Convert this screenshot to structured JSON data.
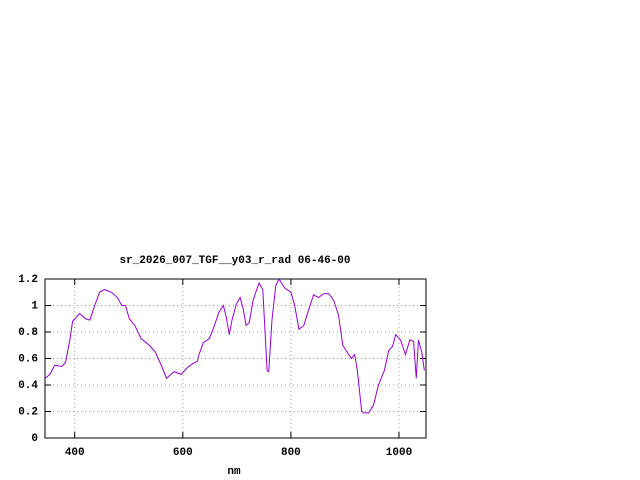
{
  "chart_data": {
    "type": "line",
    "title": "sr_2026_007_TGF__y03_r_rad 06-46-00",
    "x_label": "nm",
    "x": [
      345,
      354,
      363,
      376,
      383,
      391,
      396,
      409,
      420,
      428,
      437,
      446,
      455,
      468,
      479,
      487,
      494,
      501,
      511,
      523,
      538,
      549,
      560,
      570,
      575,
      584,
      597,
      608,
      618,
      627,
      630,
      638,
      649,
      656,
      667,
      675,
      680,
      686,
      691,
      699,
      706,
      712,
      717,
      723,
      730,
      741,
      748,
      756,
      759,
      765,
      772,
      778,
      789,
      800,
      807,
      815,
      824,
      833,
      842,
      851,
      861,
      870,
      879,
      888,
      896,
      907,
      912,
      918,
      923,
      931,
      935,
      944,
      953,
      962,
      973,
      981,
      988,
      994,
      1003,
      1012,
      1020,
      1027,
      1032,
      1036,
      1042,
      1047
    ],
    "series": [
      {
        "color": "#9400d3",
        "values": [
          0.45,
          0.48,
          0.55,
          0.54,
          0.57,
          0.74,
          0.88,
          0.94,
          0.9,
          0.89,
          1.0,
          1.1,
          1.12,
          1.1,
          1.06,
          1.0,
          1.0,
          0.9,
          0.85,
          0.75,
          0.7,
          0.65,
          0.55,
          0.45,
          0.47,
          0.5,
          0.48,
          0.53,
          0.56,
          0.58,
          0.63,
          0.72,
          0.75,
          0.82,
          0.95,
          1.0,
          0.92,
          0.78,
          0.89,
          1.01,
          1.06,
          0.97,
          0.85,
          0.87,
          1.04,
          1.17,
          1.12,
          0.51,
          0.5,
          0.89,
          1.15,
          1.2,
          1.13,
          1.1,
          1.0,
          0.82,
          0.85,
          0.97,
          1.08,
          1.06,
          1.09,
          1.09,
          1.04,
          0.93,
          0.7,
          0.63,
          0.6,
          0.63,
          0.51,
          0.2,
          0.19,
          0.19,
          0.25,
          0.4,
          0.51,
          0.66,
          0.69,
          0.78,
          0.74,
          0.63,
          0.74,
          0.73,
          0.45,
          0.74,
          0.65,
          0.51
        ]
      }
    ],
    "xlim": [
      345,
      1050
    ],
    "xticks": [
      400,
      600,
      800,
      1000
    ],
    "ylim": [
      0,
      1.2
    ],
    "yticks": [
      0,
      0.2,
      0.4,
      0.6,
      0.8,
      1,
      1.2
    ],
    "grid": true
  }
}
